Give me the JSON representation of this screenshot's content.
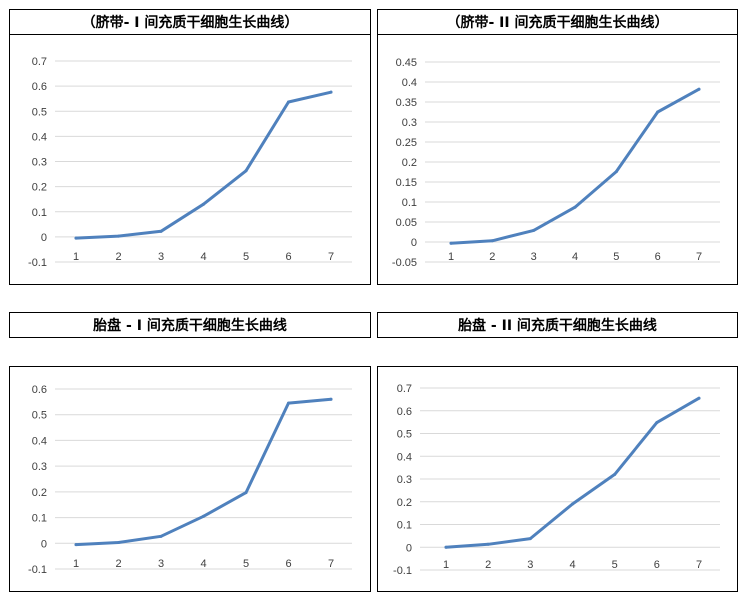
{
  "chart_data": [
    {
      "type": "line",
      "title": "（脐带- I 间充质干细胞生长曲线）",
      "categories": [
        "1",
        "2",
        "3",
        "4",
        "5",
        "6",
        "7"
      ],
      "values": [
        -0.005,
        0.003,
        0.022,
        0.13,
        0.263,
        0.537,
        0.576
      ],
      "ylim": [
        -0.1,
        0.7
      ],
      "yticks": [
        "0.7",
        "0.6",
        "0.5",
        "0.4",
        "0.3",
        "0.2",
        "0.1",
        "0",
        "-0.1"
      ],
      "grid": true,
      "line_color": "#4F81BD"
    },
    {
      "type": "line",
      "title": "（脐带- II 间充质干细胞生长曲线）",
      "categories": [
        "1",
        "2",
        "3",
        "4",
        "5",
        "6",
        "7"
      ],
      "values": [
        -0.003,
        0.003,
        0.029,
        0.087,
        0.176,
        0.325,
        0.382
      ],
      "ylim": [
        -0.05,
        0.45
      ],
      "yticks": [
        "0.45",
        "0.4",
        "0.35",
        "0.3",
        "0.25",
        "0.2",
        "0.15",
        "0.1",
        "0.05",
        "0",
        "-0.05"
      ],
      "grid": true,
      "line_color": "#4F81BD"
    },
    {
      "type": "line",
      "title": "胎盘 - I 间充质干细胞生长曲线",
      "categories": [
        "1",
        "2",
        "3",
        "4",
        "5",
        "6",
        "7"
      ],
      "values": [
        -0.005,
        0.003,
        0.027,
        0.105,
        0.197,
        0.545,
        0.56
      ],
      "ylim": [
        -0.1,
        0.6
      ],
      "yticks": [
        "0.6",
        "0.5",
        "0.4",
        "0.3",
        "0.2",
        "0.1",
        "0",
        "-0.1"
      ],
      "grid": true,
      "line_color": "#4F81BD"
    },
    {
      "type": "line",
      "title": "胎盘 - II 间充质干细胞生长曲线",
      "categories": [
        "1",
        "2",
        "3",
        "4",
        "5",
        "6",
        "7"
      ],
      "values": [
        0,
        0.013,
        0.038,
        0.19,
        0.32,
        0.548,
        0.655
      ],
      "ylim": [
        -0.1,
        0.7
      ],
      "yticks": [
        "0.7",
        "0.6",
        "0.5",
        "0.4",
        "0.3",
        "0.2",
        "0.1",
        "0",
        "-0.1"
      ],
      "grid": true,
      "line_color": "#4F81BD"
    }
  ]
}
